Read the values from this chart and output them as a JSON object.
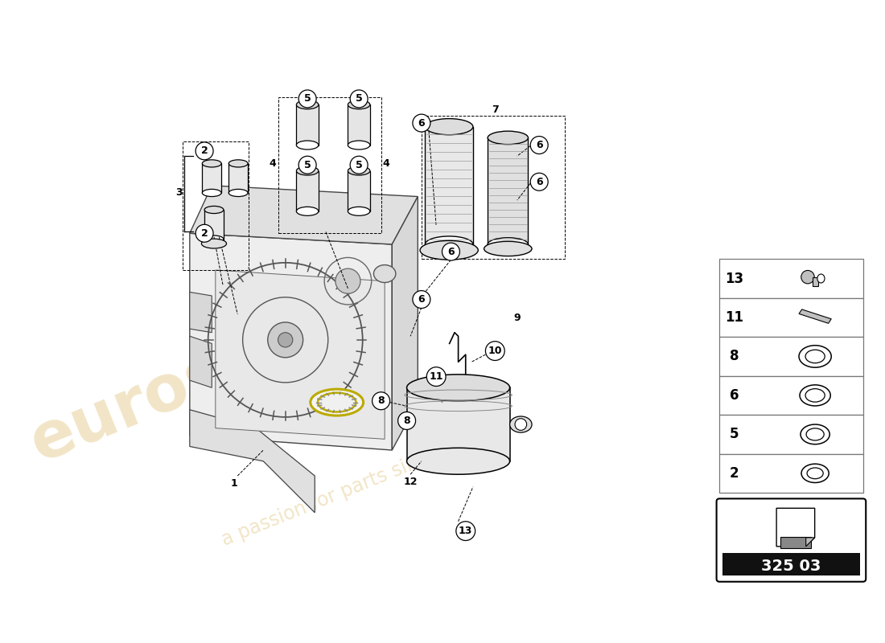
{
  "background_color": "#ffffff",
  "watermark_color_1": "#d4a843",
  "watermark_color_2": "#c8a030",
  "part_number": "325 03",
  "parts_legend": [
    {
      "num": "13",
      "shape": "bolt"
    },
    {
      "num": "11",
      "shape": "pin"
    },
    {
      "num": "8",
      "shape": "ring_large"
    },
    {
      "num": "6",
      "shape": "ring_medium"
    },
    {
      "num": "5",
      "shape": "ring_small"
    },
    {
      "num": "2",
      "shape": "ring_tiny"
    }
  ]
}
